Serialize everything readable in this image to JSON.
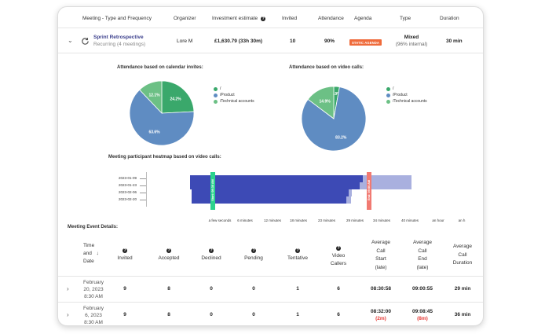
{
  "meetings_table": {
    "headers": {
      "meeting": "Meeting - Type and Frequency",
      "organizer": "Organizer",
      "investment": "Investment estimate",
      "invited": "Invited",
      "attendance": "Attendance",
      "agenda": "Agenda",
      "type": "Type",
      "duration": "Duration"
    },
    "row": {
      "title": "Sprint Retrospective",
      "frequency": "Recurring (4 meetings)",
      "organizer": "Lore M",
      "investment": "£1,630.79 (33h 30m)",
      "invited": "10",
      "attendance": "90%",
      "agenda": "STATIC AGENDA",
      "type": "Mixed",
      "type_sub": "(96% internal)",
      "duration": "30 min"
    }
  },
  "pie_calendar": {
    "title": "Attendance based on calendar invites:",
    "slices": [
      {
        "label": "24.2%",
        "value": 24.2,
        "color": "#3aa86b"
      },
      {
        "label": "63.6%",
        "value": 63.6,
        "color": "#5f8cc2"
      },
      {
        "label": "12.1%",
        "value": 12.1,
        "color": "#6cc085"
      }
    ],
    "legend": [
      {
        "label": "/",
        "color": "#3aa86b"
      },
      {
        "label": "/Product",
        "color": "#5f8cc2"
      },
      {
        "label": "/Technical accounts",
        "color": "#6cc085"
      }
    ]
  },
  "pie_video": {
    "title": "Attendance based on video calls:",
    "slices": [
      {
        "label": "2.9%",
        "value": 2.9,
        "color": "#3aa86b"
      },
      {
        "label": "83.2%",
        "value": 83.2,
        "color": "#5f8cc2"
      },
      {
        "label": "14.9%",
        "value": 14.9,
        "color": "#6cc085"
      }
    ],
    "legend": [
      {
        "label": "/",
        "color": "#3aa86b"
      },
      {
        "label": "/Product",
        "color": "#5f8cc2"
      },
      {
        "label": "/Technical accounts",
        "color": "#6cc085"
      }
    ]
  },
  "heatmap": {
    "title": "Meeting participant heatmap based on video calls:",
    "dates": [
      "2023-01-09",
      "2023-01-23",
      "2023-02-06",
      "2023-02-20"
    ],
    "x_ticks": [
      "a few seconds",
      "6 minutes",
      "12 minutes",
      "18 minutes",
      "23 minutes",
      "29 minutes",
      "34 minutes",
      "40 minutes",
      "an hour",
      "an h"
    ],
    "start_marker": "Start: 08:30 AM",
    "end_marker": "End: 09:00 AM",
    "dark_color": "#3d4ab5",
    "light_color": "#a9b0df",
    "start_color": "#2bd38e",
    "end_color": "#f17a72"
  },
  "chart_data": {
    "type": "pie",
    "charts": [
      {
        "title": "Attendance based on calendar invites:",
        "categories": [
          "/",
          "/Product",
          "/Technical accounts"
        ],
        "values": [
          24.2,
          63.6,
          12.1
        ]
      },
      {
        "title": "Attendance based on video calls:",
        "categories": [
          "/",
          "/Product",
          "/Technical accounts"
        ],
        "values": [
          2.9,
          83.2,
          14.9
        ]
      }
    ],
    "legend": "right"
  },
  "events": {
    "title": "Meeting Event Details:",
    "headers": {
      "time_l1": "Time",
      "time_l2": "and",
      "time_l3": "Date",
      "invited": "Invited",
      "accepted": "Accepted",
      "declined": "Declined",
      "pending": "Pending",
      "tentative": "Tentative",
      "video_l1": "Video",
      "video_l2": "Callers",
      "start_l1": "Average",
      "start_l2": "Call",
      "start_l3": "Start",
      "start_l4": "(late)",
      "end_l1": "Average",
      "end_l2": "Call",
      "end_l3": "End",
      "end_l4": "(late)",
      "dur_l1": "Average",
      "dur_l2": "Call",
      "dur_l3": "Duration"
    },
    "rows": [
      {
        "date_l1": "February",
        "date_l2": "20, 2023",
        "date_l3": "8:30 AM",
        "invited": "9",
        "accepted": "8",
        "declined": "0",
        "pending": "0",
        "tentative": "1",
        "video": "6",
        "start": "08:30:58",
        "start_late": "",
        "end": "09:00:55",
        "end_late": "",
        "duration": "29 min"
      },
      {
        "date_l1": "February",
        "date_l2": "6, 2023",
        "date_l3": "8:30 AM",
        "invited": "9",
        "accepted": "8",
        "declined": "0",
        "pending": "0",
        "tentative": "1",
        "video": "6",
        "start": "08:32:00",
        "start_late": "(2m)",
        "end": "09:08:45",
        "end_late": "(8m)",
        "duration": "36 min"
      }
    ]
  }
}
